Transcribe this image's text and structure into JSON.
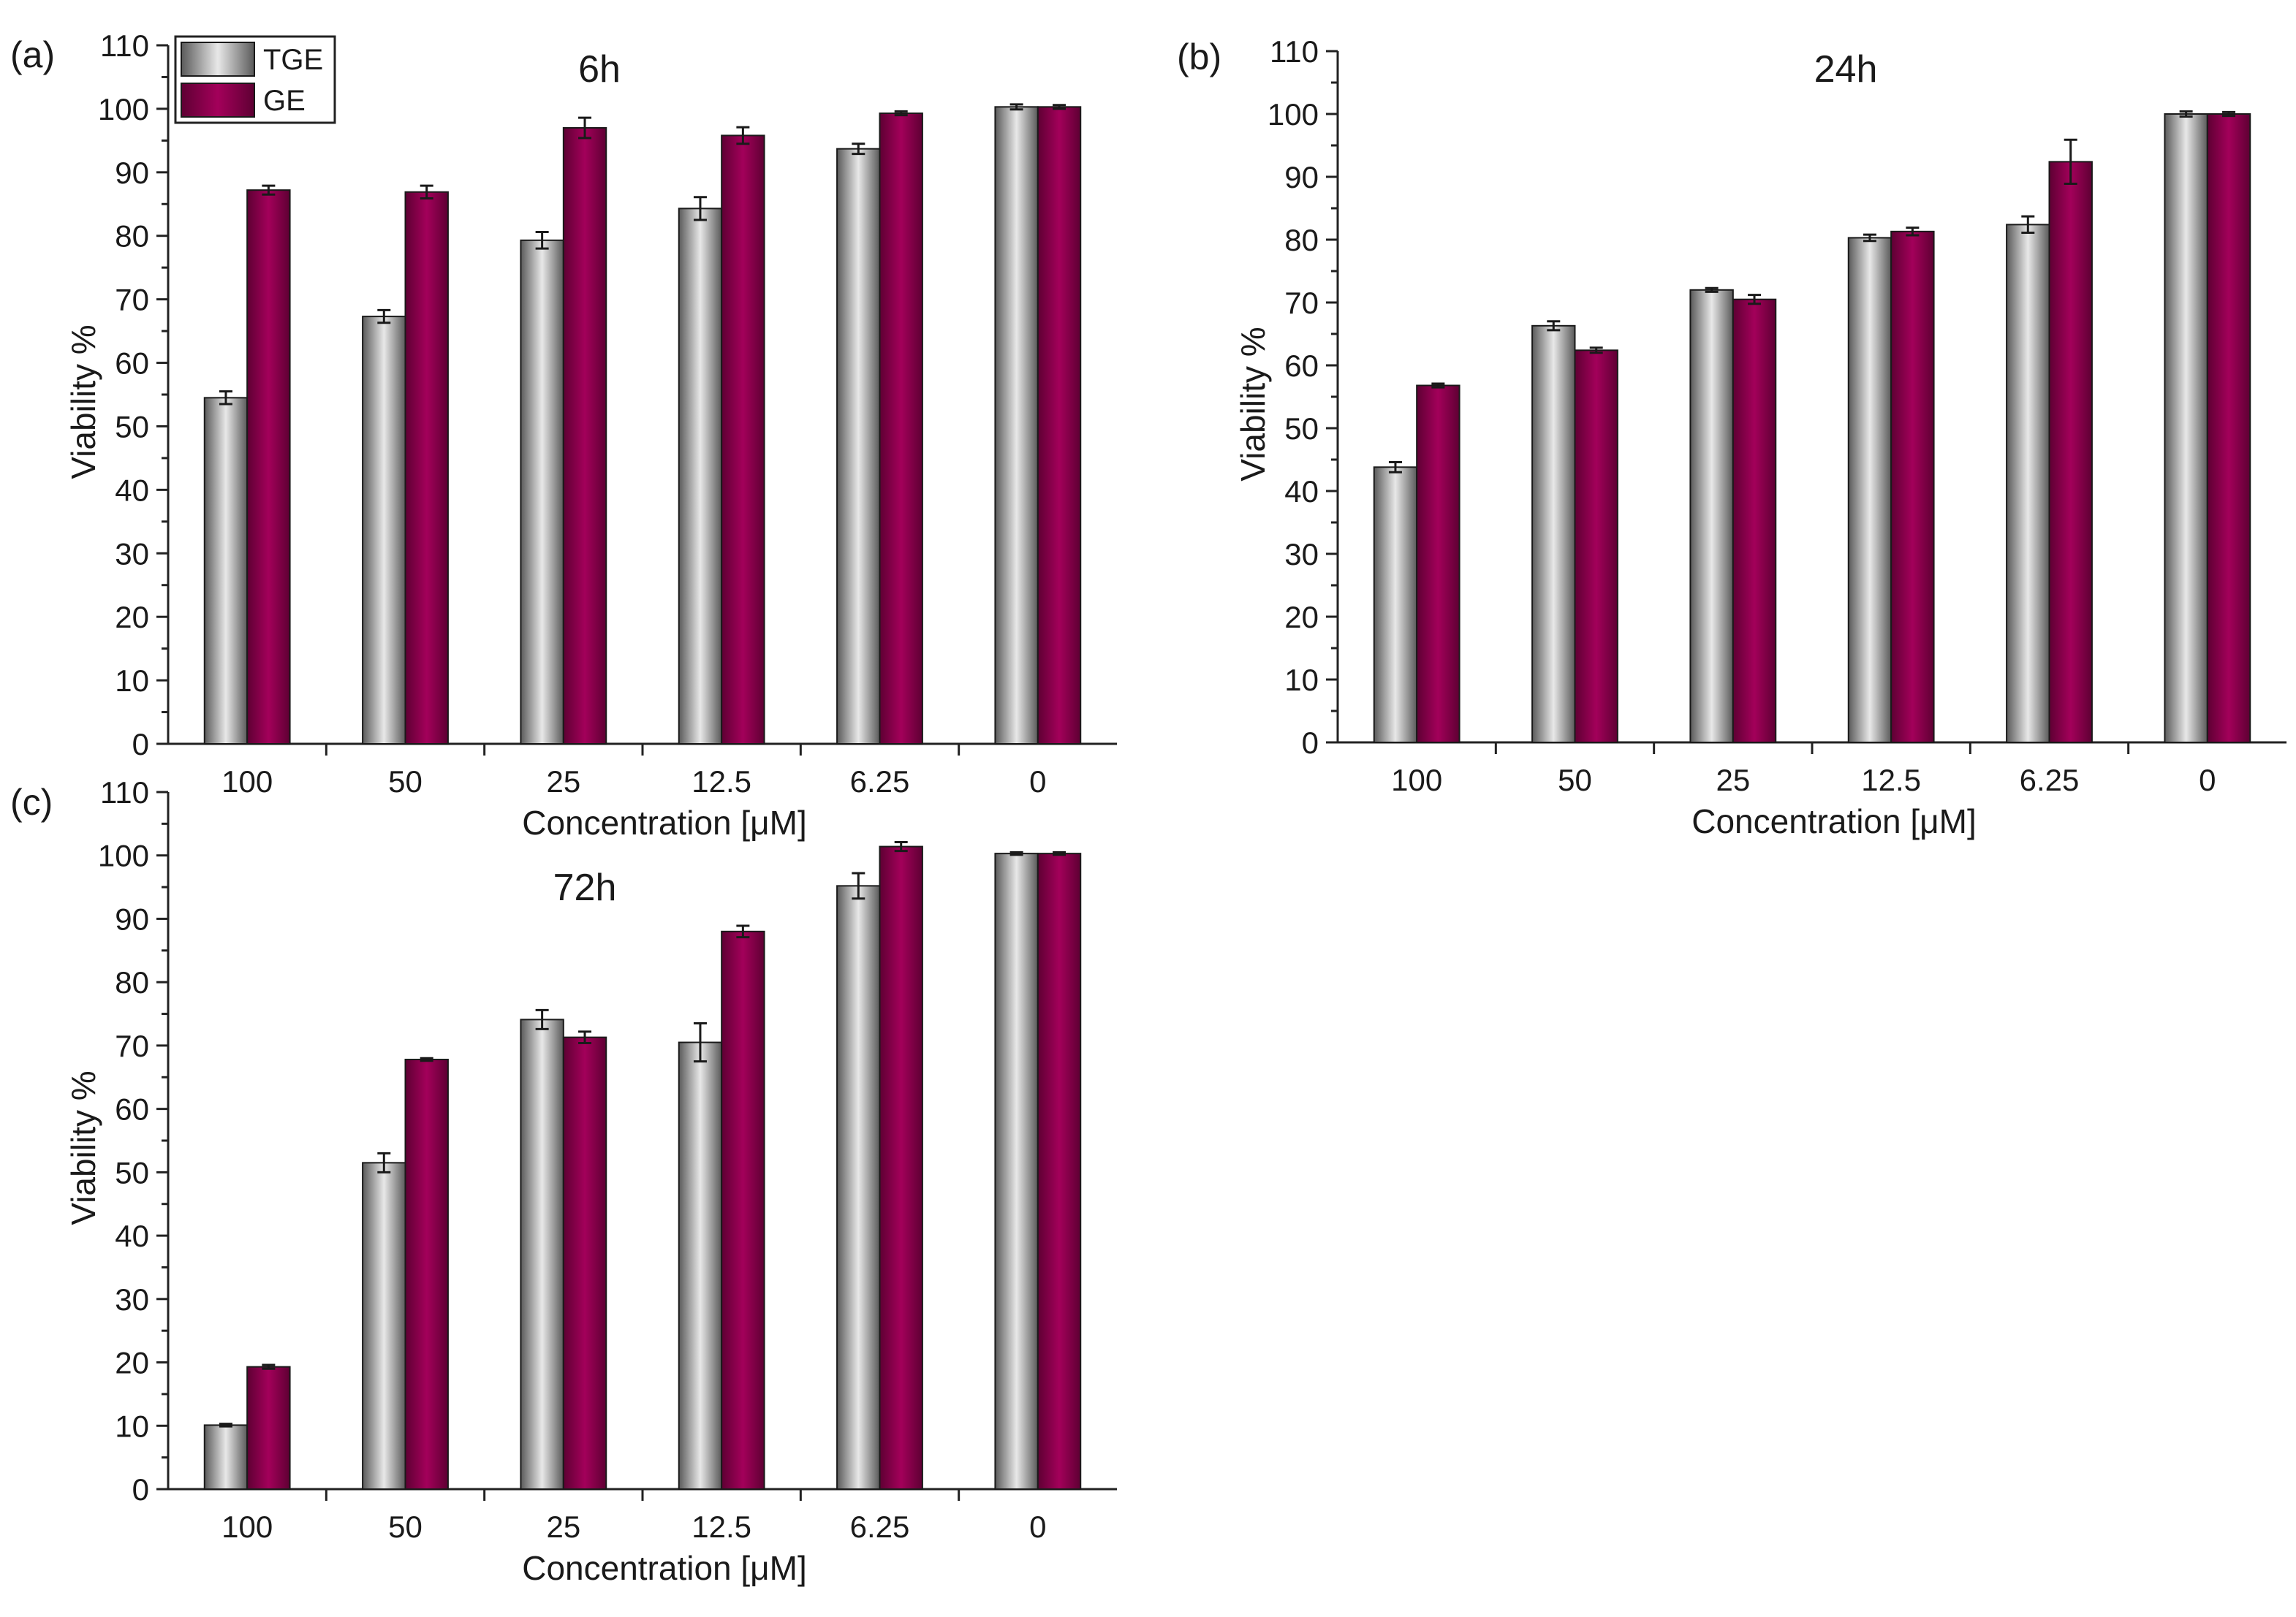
{
  "colors": {
    "tge_edge": "#5a5a5a",
    "tge_mid": "#e8e8e8",
    "ge_edge": "#5e0033",
    "ge_mid": "#a3005a",
    "axis": "#222222"
  },
  "legend": [
    "TGE",
    "GE"
  ],
  "chart_data": [
    {
      "type": "bar",
      "panel": "(a)",
      "title": "6h",
      "xlabel": "Concentration [μM]",
      "ylabel": "Viability %",
      "ylim": [
        0,
        110
      ],
      "yticks": [
        0,
        10,
        20,
        30,
        40,
        50,
        60,
        70,
        80,
        90,
        100,
        110
      ],
      "categories": [
        "100",
        "50",
        "25",
        "12.5",
        "6.25",
        "0"
      ],
      "legend_position": "top-left",
      "series": [
        {
          "name": "TGE",
          "values": [
            54.5,
            67.3,
            79.3,
            84.3,
            93.7,
            100.3
          ],
          "errors": [
            1.0,
            1.0,
            1.3,
            1.8,
            0.8,
            0.4
          ]
        },
        {
          "name": "GE",
          "values": [
            87.2,
            86.9,
            97.0,
            95.8,
            99.3,
            100.3
          ],
          "errors": [
            0.7,
            1.0,
            1.6,
            1.3,
            0.3,
            0.3
          ]
        }
      ]
    },
    {
      "type": "bar",
      "panel": "(b)",
      "title": "24h",
      "xlabel": "Concentration [μM]",
      "ylabel": "Viability %",
      "ylim": [
        0,
        110
      ],
      "yticks": [
        0,
        10,
        20,
        30,
        40,
        50,
        60,
        70,
        80,
        90,
        100,
        110
      ],
      "categories": [
        "100",
        "50",
        "25",
        "12.5",
        "6.25",
        "0"
      ],
      "series": [
        {
          "name": "TGE",
          "values": [
            43.8,
            66.3,
            72.0,
            80.3,
            82.4,
            100.0
          ],
          "errors": [
            0.8,
            0.7,
            0.3,
            0.5,
            1.3,
            0.4
          ]
        },
        {
          "name": "GE",
          "values": [
            56.8,
            62.4,
            70.5,
            81.3,
            92.4,
            100.0
          ],
          "errors": [
            0.3,
            0.4,
            0.7,
            0.6,
            3.5,
            0.3
          ]
        }
      ]
    },
    {
      "type": "bar",
      "panel": "(c)",
      "title": "72h",
      "xlabel": "Concentration [μM]",
      "ylabel": "Viability %",
      "ylim": [
        0,
        110
      ],
      "yticks": [
        0,
        10,
        20,
        30,
        40,
        50,
        60,
        70,
        80,
        90,
        100,
        110
      ],
      "categories": [
        "100",
        "50",
        "25",
        "12.5",
        "6.25",
        "0"
      ],
      "series": [
        {
          "name": "TGE",
          "values": [
            10.1,
            51.5,
            74.1,
            70.5,
            95.2,
            100.3
          ],
          "errors": [
            0.2,
            1.5,
            1.5,
            3.0,
            2.0,
            0.2
          ]
        },
        {
          "name": "GE",
          "values": [
            19.3,
            67.8,
            71.3,
            88.0,
            101.4,
            100.3
          ],
          "errors": [
            0.3,
            0.2,
            0.9,
            0.9,
            0.7,
            0.2
          ]
        }
      ]
    }
  ]
}
